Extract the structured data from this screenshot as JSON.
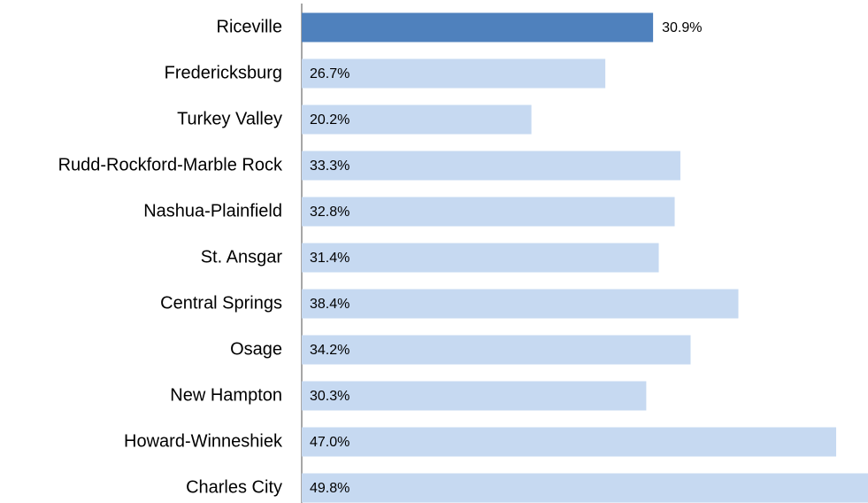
{
  "chart_data": {
    "type": "bar",
    "orientation": "horizontal",
    "categories": [
      "Riceville",
      "Fredericksburg",
      "Turkey Valley",
      "Rudd-Rockford-Marble Rock",
      "Nashua-Plainfield",
      "St. Ansgar",
      "Central Springs",
      "Osage",
      "New Hampton",
      "Howard-Winneshiek",
      "Charles City"
    ],
    "values": [
      30.9,
      26.7,
      20.2,
      33.3,
      32.8,
      31.4,
      38.4,
      34.2,
      30.3,
      47.0,
      49.8
    ],
    "value_labels": [
      "30.9%",
      "26.7%",
      "20.2%",
      "33.3%",
      "32.8%",
      "31.4%",
      "38.4%",
      "34.2%",
      "30.3%",
      "47.0%",
      "49.8%"
    ],
    "color": "#c6d9f1",
    "highlight_color": "#4f81bd",
    "highlight_index": 0
  }
}
